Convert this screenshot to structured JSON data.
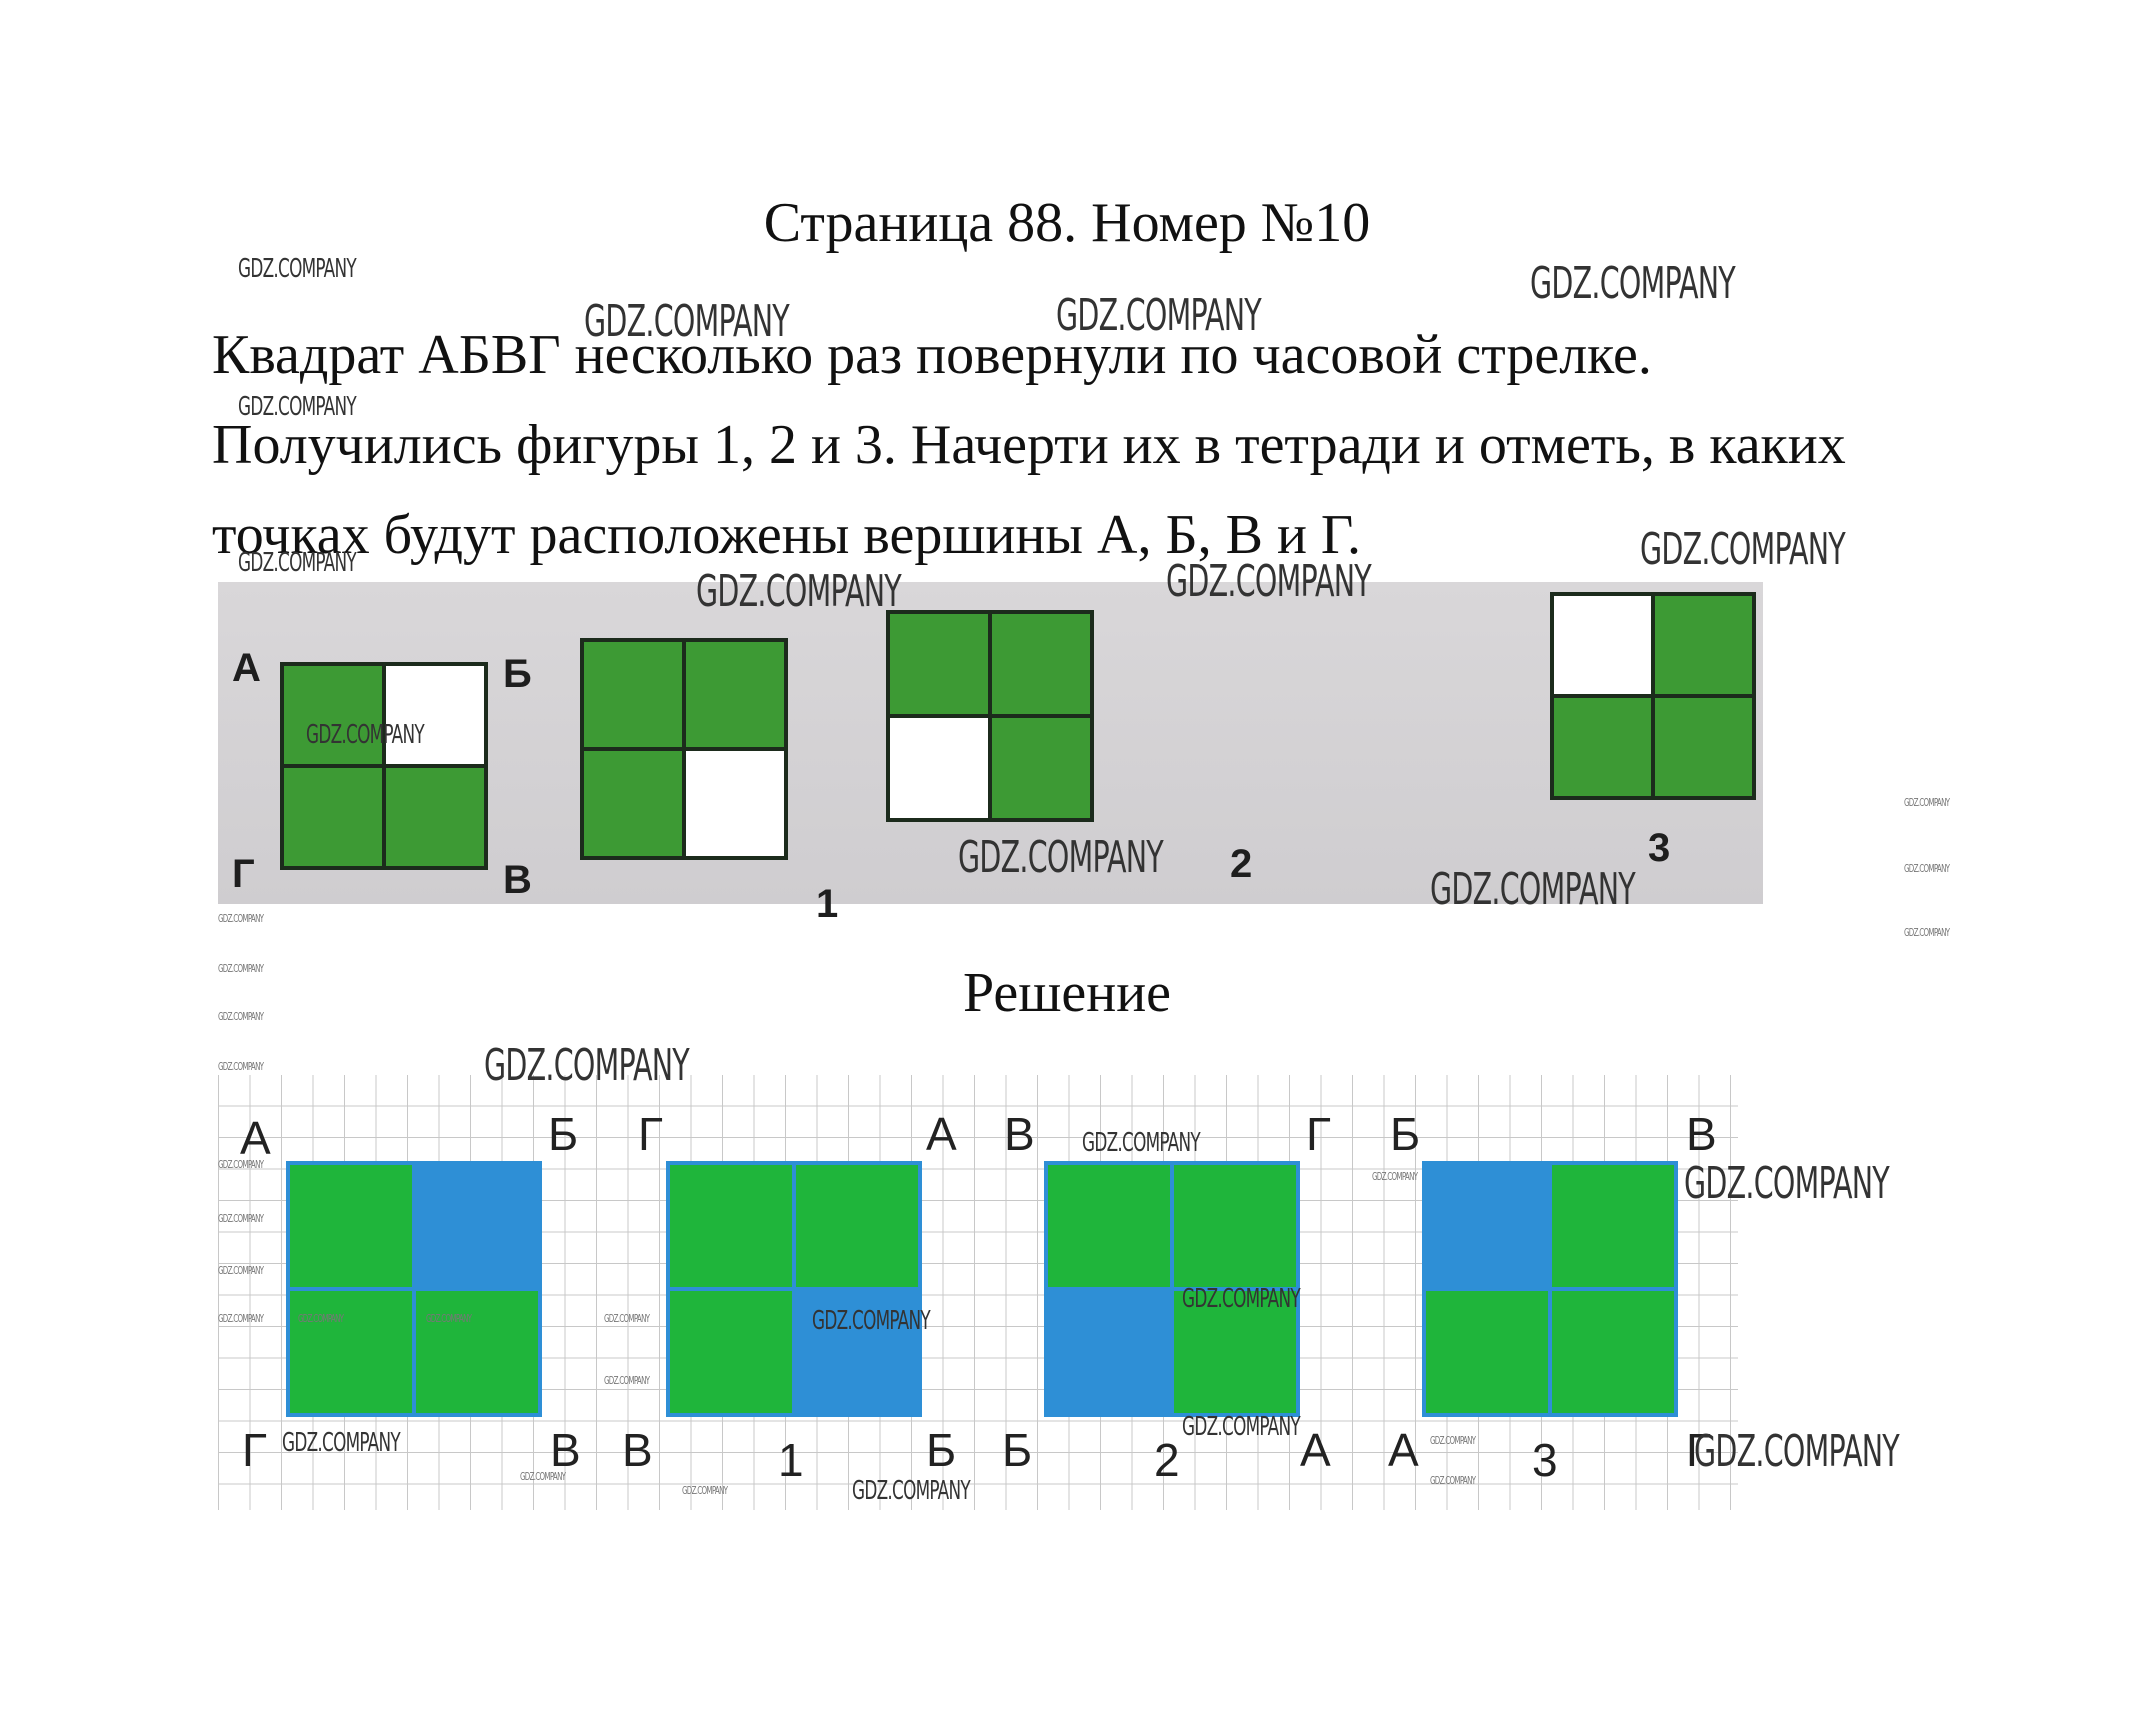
{
  "title": "Страница 88. Номер №10",
  "task": {
    "line1": "Квадрат АБВГ несколько раз повернули по часовой стрелке.",
    "line2": "Получились фигуры 1, 2 и 3. Начерти их в тетради и отметь, в каких",
    "line3": "точках будут расположены вершины А, Б, В и Г."
  },
  "photo": {
    "original": {
      "corners": {
        "tl": "А",
        "tr": "Б",
        "bl": "Г",
        "br": "В"
      },
      "cells": [
        true,
        false,
        true,
        true
      ]
    },
    "figures": [
      {
        "label": "1",
        "cells": [
          true,
          true,
          true,
          false
        ]
      },
      {
        "label": "2",
        "cells": [
          true,
          true,
          false,
          true
        ]
      },
      {
        "label": "3",
        "cells": [
          false,
          true,
          true,
          true
        ]
      }
    ]
  },
  "solution_heading": "Решение",
  "solution": [
    {
      "corners": {
        "tl": "А",
        "tr": "Б",
        "bl": "Г",
        "br": "В"
      },
      "label": "",
      "cells": [
        true,
        false,
        true,
        true
      ]
    },
    {
      "corners": {
        "tl": "Г",
        "tr": "А",
        "bl": "В",
        "br": "Б"
      },
      "label": "1",
      "cells": [
        true,
        true,
        true,
        false
      ]
    },
    {
      "corners": {
        "tl": "В",
        "tr": "Г",
        "bl": "Б",
        "br": "А"
      },
      "label": "2",
      "cells": [
        true,
        true,
        false,
        true
      ]
    },
    {
      "corners": {
        "tl": "Б",
        "tr": "В",
        "bl": "А",
        "br": "Г"
      },
      "label": "3",
      "cells": [
        false,
        true,
        true,
        true
      ]
    }
  ],
  "watermark": "GDZ.COMPANY",
  "colors": {
    "photo_green": "#3d9a34",
    "solution_green": "#1fb53b",
    "solution_border": "#2e8fd6"
  }
}
